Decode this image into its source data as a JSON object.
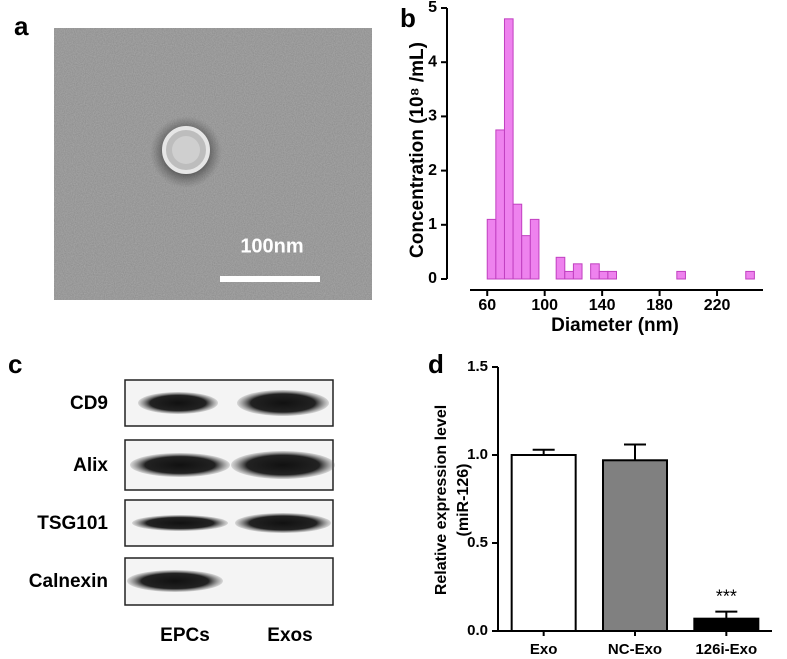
{
  "panel_labels": [
    "a",
    "b",
    "c",
    "d"
  ],
  "micrograph": {
    "scale_bar_label": "100nm"
  },
  "blot": {
    "proteins": [
      "CD9",
      "Alix",
      "TSG101",
      "Calnexin"
    ],
    "lanes": [
      "EPCs",
      "Exos"
    ]
  },
  "chart_data": [
    {
      "type": "histogram",
      "xlabel": "Diameter (nm)",
      "ylabel": "Concentration (10⁸ /mL)",
      "bins": [
        60,
        66,
        72,
        78,
        84,
        90,
        96,
        102,
        108,
        114,
        120,
        126,
        132,
        138,
        144,
        150,
        156,
        162,
        168,
        174,
        180,
        186,
        192,
        198,
        204,
        210,
        216,
        222,
        228,
        234,
        240,
        246
      ],
      "counts": [
        1.1,
        2.75,
        4.8,
        1.38,
        0.8,
        1.1,
        0,
        0,
        0.4,
        0.14,
        0.28,
        0,
        0.28,
        0.14,
        0.14,
        0,
        0,
        0,
        0,
        0,
        0,
        0,
        0.14,
        0,
        0,
        0,
        0,
        0,
        0,
        0,
        0.14
      ],
      "color": "#ee82ee",
      "xlim": [
        48,
        252
      ],
      "xticks": [
        60,
        100,
        140,
        180,
        220
      ],
      "ylim": [
        0,
        5
      ],
      "yticks": [
        0,
        1,
        2,
        3,
        4,
        5
      ]
    },
    {
      "type": "bar",
      "ylabel": [
        "Relative expression level",
        "(miR-126)"
      ],
      "categories": [
        "Exo",
        "NC-Exo",
        "126i-Exo"
      ],
      "values": [
        1.0,
        0.97,
        0.07
      ],
      "errors": [
        0.03,
        0.09,
        0.04
      ],
      "colors": [
        "#ffffff",
        "#808080",
        "#000000"
      ],
      "annotation": "***",
      "ylim": [
        0,
        1.5
      ],
      "yticks": [
        {
          "value": 0,
          "label": "0.0"
        },
        {
          "value": 0.5,
          "label": "0.5"
        },
        {
          "value": 1,
          "label": "1.0"
        },
        {
          "value": 1.5,
          "label": "1.5"
        }
      ]
    }
  ]
}
